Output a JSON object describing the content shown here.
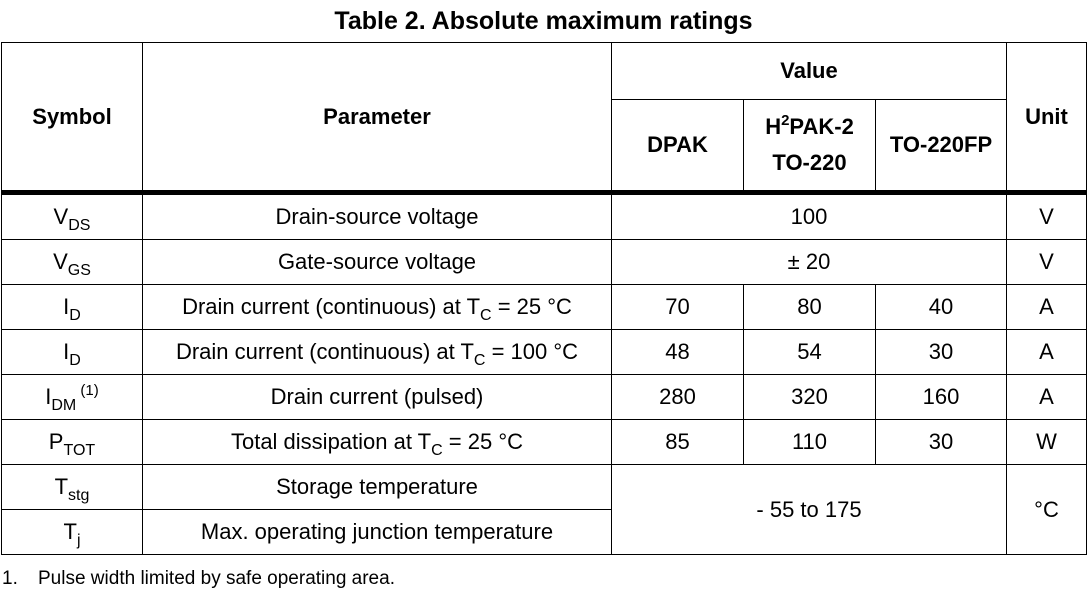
{
  "title": "Table 2. Absolute maximum ratings",
  "headers": {
    "symbol": "Symbol",
    "parameter": "Parameter",
    "value": "Value",
    "unit": "Unit",
    "dpak": "DPAK",
    "h2pak_main": "H",
    "h2pak_sup": "2",
    "h2pak_rest": "PAK-2",
    "to220": "TO-220",
    "to220fp": "TO-220FP"
  },
  "rows": [
    {
      "sym_main": "V",
      "sym_sub": "DS",
      "param": "Drain-source voltage",
      "value": "100",
      "unit": "V"
    },
    {
      "sym_main": "V",
      "sym_sub": "GS",
      "param": "Gate-source voltage",
      "value": "± 20",
      "unit": "V"
    },
    {
      "sym_main": "I",
      "sym_sub": "D",
      "param_a": "Drain current (continuous) at T",
      "param_sub": "C",
      "param_b": " = 25 °C",
      "dpak": "70",
      "h2pak": "80",
      "to220fp": "40",
      "unit": "A"
    },
    {
      "sym_main": "I",
      "sym_sub": "D",
      "param_a": "Drain current (continuous) at T",
      "param_sub": "C",
      "param_b": " = 100 °C",
      "dpak": "48",
      "h2pak": "54",
      "to220fp": "30",
      "unit": "A"
    },
    {
      "sym_main": "I",
      "sym_sub": "DM",
      "sym_sup": " (1)",
      "param": "Drain current (pulsed)",
      "dpak": "280",
      "h2pak": "320",
      "to220fp": "160",
      "unit": "A"
    },
    {
      "sym_main": "P",
      "sym_sub": "TOT",
      "param_a": "Total dissipation at T",
      "param_sub": "C",
      "param_b": " = 25 °C",
      "dpak": "85",
      "h2pak": "110",
      "to220fp": "30",
      "unit": "W"
    },
    {
      "sym_main": "T",
      "sym_sub": "stg",
      "param": "Storage temperature"
    },
    {
      "sym_main": "T",
      "sym_sub": "j",
      "param": "Max. operating junction temperature"
    }
  ],
  "temp_value": "- 55 to 175",
  "temp_unit": "°C",
  "footnote": {
    "num": "1.",
    "text": "Pulse width limited by safe operating area."
  }
}
